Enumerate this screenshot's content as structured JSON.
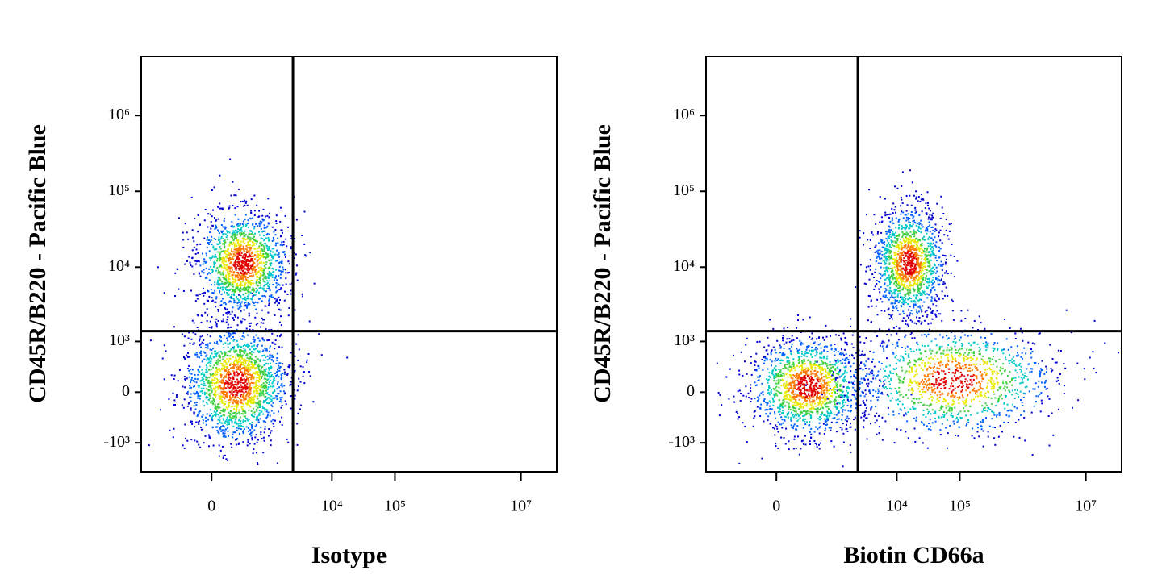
{
  "chart_data": [
    {
      "type": "scatter",
      "scale": "biexponential",
      "xlabel": "Isotype",
      "ylabel": "CD45R/B220 - Pacific Blue",
      "xlim": [
        -1600,
        37000000
      ],
      "ylim": [
        -2500,
        6000000
      ],
      "xticks": [
        0,
        {
          "value": 10000,
          "label": "10⁴"
        },
        {
          "value": 100000,
          "label": "10⁵"
        },
        {
          "value": 10000000,
          "label": "10⁷"
        }
      ],
      "yticks": [
        {
          "value": 1000000,
          "label": "10⁶"
        },
        {
          "value": 100000,
          "label": "10⁵"
        },
        {
          "value": 10000,
          "label": "10⁴"
        },
        {
          "value": 1000,
          "label": "10³"
        },
        0,
        {
          "value": -1000,
          "label": "-10³"
        }
      ],
      "gates": {
        "x": 2400,
        "y": 1400
      },
      "series": [
        {
          "x": [
            337,
            246
          ],
          "y": [
            11600,
            123
          ]
        }
      ]
    },
    {
      "type": "scatter",
      "scale": "biexponential",
      "xlabel": "Biotin CD66a",
      "ylabel": "CD45R/B220 - Pacific Blue",
      "xlim": [
        -1600,
        37000000
      ],
      "ylim": [
        -2500,
        6000000
      ],
      "xticks": [
        0,
        {
          "value": 10000,
          "label": "10⁴"
        },
        {
          "value": 100000,
          "label": "10⁵"
        },
        {
          "value": 10000000,
          "label": "10⁷"
        }
      ],
      "yticks": [
        {
          "value": 1000000,
          "label": "10⁶"
        },
        {
          "value": 100000,
          "label": "10⁵"
        },
        {
          "value": 10000,
          "label": "10⁴"
        },
        {
          "value": 1000,
          "label": "10³"
        },
        0,
        {
          "value": -1000,
          "label": "-10³"
        }
      ],
      "gates": {
        "x": 2400,
        "y": 1400
      },
      "series": [
        {
          "x": [
            15100,
            337,
            76000
          ],
          "y": [
            11600,
            90,
            180
          ]
        }
      ]
    }
  ]
}
